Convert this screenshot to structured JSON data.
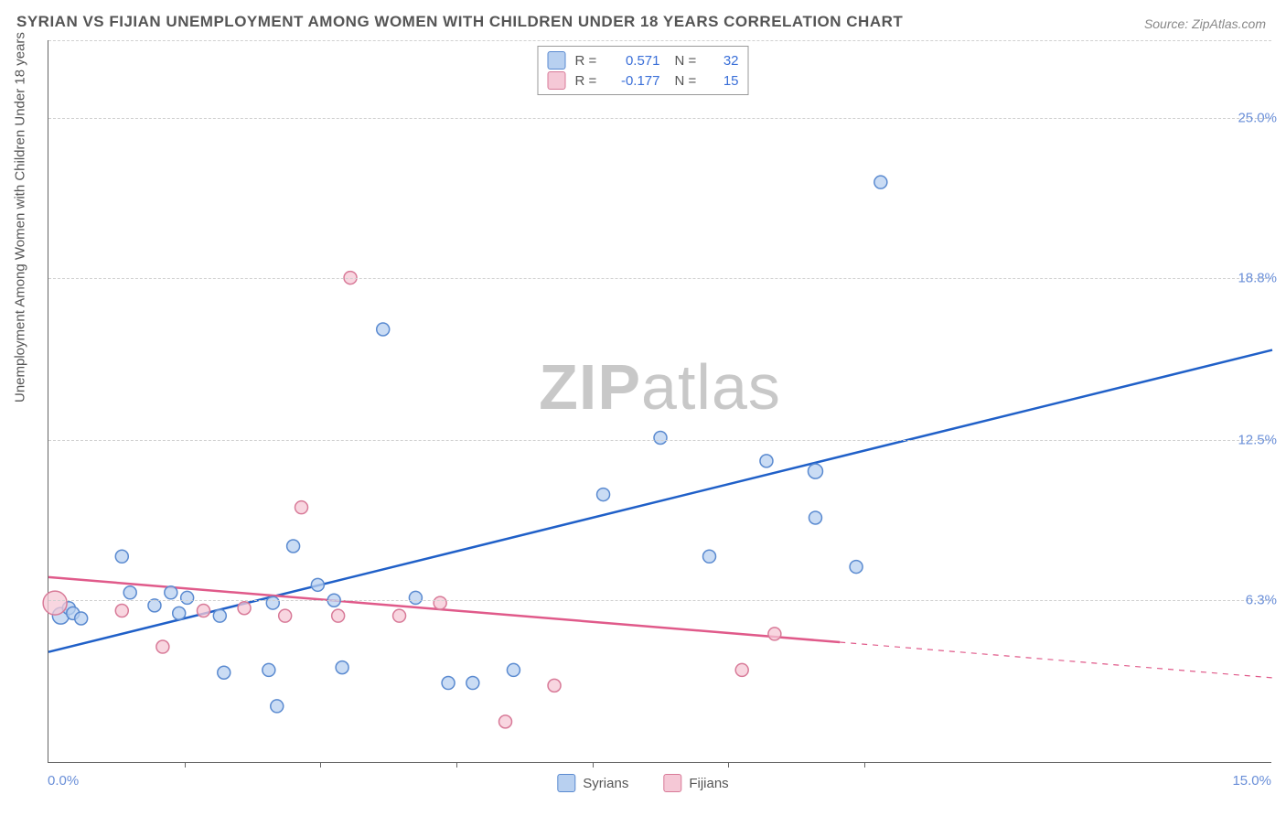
{
  "title": "SYRIAN VS FIJIAN UNEMPLOYMENT AMONG WOMEN WITH CHILDREN UNDER 18 YEARS CORRELATION CHART",
  "source": "Source: ZipAtlas.com",
  "ylabel": "Unemployment Among Women with Children Under 18 years",
  "watermark_a": "ZIP",
  "watermark_b": "atlas",
  "chart": {
    "type": "scatter",
    "background_color": "#ffffff",
    "grid_color": "#d0d0d0",
    "axis_color": "#666666",
    "xlim": [
      0,
      15
    ],
    "ylim": [
      0,
      28
    ],
    "x_start_label": "0.0%",
    "x_end_label": "15.0%",
    "ytick_labels": [
      {
        "value": 6.3,
        "label": "6.3%"
      },
      {
        "value": 12.5,
        "label": "12.5%"
      },
      {
        "value": 18.8,
        "label": "18.8%"
      },
      {
        "value": 25.0,
        "label": "25.0%"
      }
    ],
    "xtick_positions": [
      1.67,
      3.33,
      5.0,
      6.67,
      8.33,
      10.0
    ],
    "series": [
      {
        "name": "Syrians",
        "fill": "#b8d0f0",
        "stroke": "#5a8ad0",
        "trend_color": "#2060c8",
        "trend": {
          "x1": 0,
          "y1": 4.3,
          "x2": 15,
          "y2": 16.0,
          "solid_to_x": 15
        },
        "stats": {
          "R": "0.571",
          "N": "32"
        },
        "points": [
          {
            "x": 0.15,
            "y": 5.7,
            "r": 9
          },
          {
            "x": 0.25,
            "y": 6.0,
            "r": 7
          },
          {
            "x": 0.3,
            "y": 5.8,
            "r": 7
          },
          {
            "x": 0.4,
            "y": 5.6,
            "r": 7
          },
          {
            "x": 0.9,
            "y": 8.0,
            "r": 7
          },
          {
            "x": 1.0,
            "y": 6.6,
            "r": 7
          },
          {
            "x": 1.3,
            "y": 6.1,
            "r": 7
          },
          {
            "x": 1.5,
            "y": 6.6,
            "r": 7
          },
          {
            "x": 1.6,
            "y": 5.8,
            "r": 7
          },
          {
            "x": 1.7,
            "y": 6.4,
            "r": 7
          },
          {
            "x": 2.1,
            "y": 5.7,
            "r": 7
          },
          {
            "x": 2.15,
            "y": 3.5,
            "r": 7
          },
          {
            "x": 2.8,
            "y": 2.2,
            "r": 7
          },
          {
            "x": 2.75,
            "y": 6.2,
            "r": 7
          },
          {
            "x": 2.7,
            "y": 3.6,
            "r": 7
          },
          {
            "x": 3.0,
            "y": 8.4,
            "r": 7
          },
          {
            "x": 3.3,
            "y": 6.9,
            "r": 7
          },
          {
            "x": 3.5,
            "y": 6.3,
            "r": 7
          },
          {
            "x": 3.6,
            "y": 3.7,
            "r": 7
          },
          {
            "x": 4.1,
            "y": 16.8,
            "r": 7
          },
          {
            "x": 4.5,
            "y": 6.4,
            "r": 7
          },
          {
            "x": 4.9,
            "y": 3.1,
            "r": 7
          },
          {
            "x": 5.2,
            "y": 3.1,
            "r": 7
          },
          {
            "x": 5.7,
            "y": 3.6,
            "r": 7
          },
          {
            "x": 6.8,
            "y": 10.4,
            "r": 7
          },
          {
            "x": 7.5,
            "y": 12.6,
            "r": 7
          },
          {
            "x": 8.1,
            "y": 8.0,
            "r": 7
          },
          {
            "x": 8.8,
            "y": 11.7,
            "r": 7
          },
          {
            "x": 9.4,
            "y": 11.3,
            "r": 8
          },
          {
            "x": 9.4,
            "y": 9.5,
            "r": 7
          },
          {
            "x": 9.9,
            "y": 7.6,
            "r": 7
          },
          {
            "x": 10.2,
            "y": 22.5,
            "r": 7
          }
        ]
      },
      {
        "name": "Fijians",
        "fill": "#f5c8d6",
        "stroke": "#d87a98",
        "trend_color": "#e05a8a",
        "trend": {
          "x1": 0,
          "y1": 7.2,
          "x2": 15,
          "y2": 3.3,
          "solid_to_x": 9.7
        },
        "stats": {
          "R": "-0.177",
          "N": "15"
        },
        "points": [
          {
            "x": 0.08,
            "y": 6.2,
            "r": 13
          },
          {
            "x": 0.9,
            "y": 5.9,
            "r": 7
          },
          {
            "x": 1.4,
            "y": 4.5,
            "r": 7
          },
          {
            "x": 1.9,
            "y": 5.9,
            "r": 7
          },
          {
            "x": 2.4,
            "y": 6.0,
            "r": 7
          },
          {
            "x": 2.9,
            "y": 5.7,
            "r": 7
          },
          {
            "x": 3.1,
            "y": 9.9,
            "r": 7
          },
          {
            "x": 3.55,
            "y": 5.7,
            "r": 7
          },
          {
            "x": 3.7,
            "y": 18.8,
            "r": 7
          },
          {
            "x": 4.3,
            "y": 5.7,
            "r": 7
          },
          {
            "x": 4.8,
            "y": 6.2,
            "r": 7
          },
          {
            "x": 5.6,
            "y": 1.6,
            "r": 7
          },
          {
            "x": 6.2,
            "y": 3.0,
            "r": 7
          },
          {
            "x": 8.5,
            "y": 3.6,
            "r": 7
          },
          {
            "x": 8.9,
            "y": 5.0,
            "r": 7
          }
        ]
      }
    ]
  }
}
